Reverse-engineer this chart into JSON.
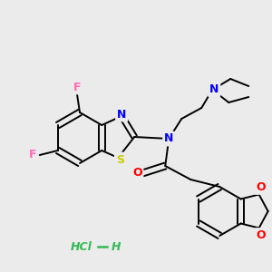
{
  "background_color": "#ebebeb",
  "bond_color": "#000000",
  "atom_colors": {
    "F": "#ff69b4",
    "S": "#cccc00",
    "N": "#0000ff",
    "O": "#ff0000",
    "Cl": "#33bb55"
  },
  "hcl_color": "#33bb55",
  "figsize": [
    3.0,
    3.0
  ],
  "dpi": 100
}
